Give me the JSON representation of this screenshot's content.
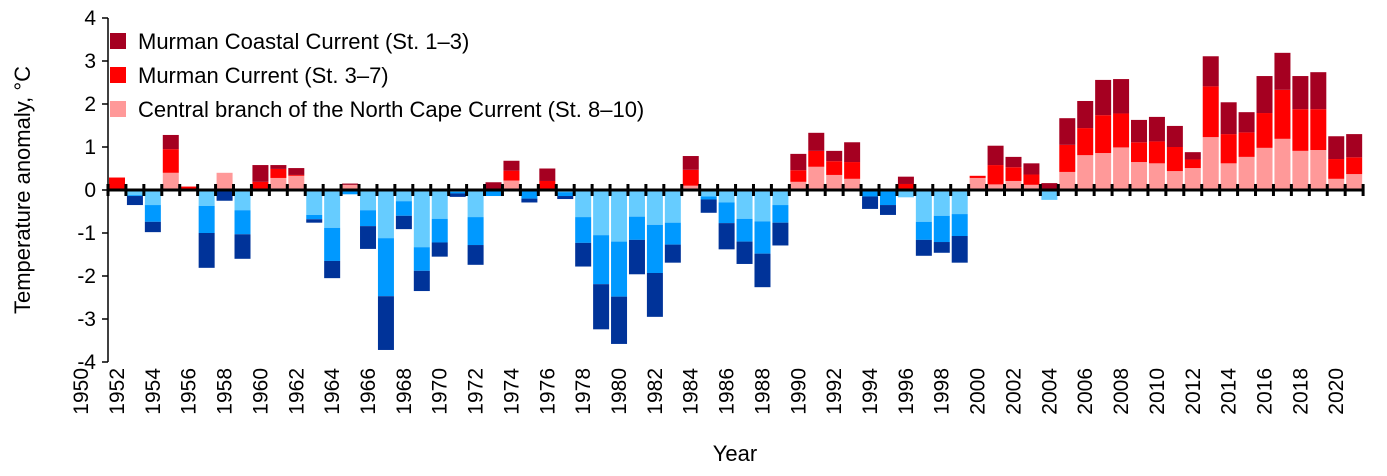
{
  "chart_data": {
    "type": "bar",
    "stacked": true,
    "title": "",
    "xlabel": "Year",
    "ylabel": "Temperature anomaly, °C",
    "ylim": [
      -4,
      4
    ],
    "yticks": [
      4,
      3,
      2,
      1,
      0,
      -1,
      -2,
      -3,
      -4
    ],
    "xtick_labels": [
      "1950",
      "1952",
      "1954",
      "1956",
      "1958",
      "1960",
      "1962",
      "1964",
      "1966",
      "1968",
      "1970",
      "1972",
      "1974",
      "1976",
      "1978",
      "1980",
      "1982",
      "1984",
      "1986",
      "1988",
      "1990",
      "1992",
      "1994",
      "1996",
      "1998",
      "2000",
      "2002",
      "2004",
      "2006",
      "2008",
      "2010",
      "2012",
      "2014",
      "2016",
      "2018",
      "2020"
    ],
    "grid": false,
    "legend_position": "top-left",
    "negative_colors_note_free": true,
    "categories": [
      1951,
      1952,
      1953,
      1954,
      1955,
      1956,
      1957,
      1958,
      1959,
      1960,
      1961,
      1962,
      1963,
      1964,
      1965,
      1966,
      1967,
      1968,
      1969,
      1970,
      1971,
      1972,
      1973,
      1974,
      1975,
      1976,
      1977,
      1978,
      1979,
      1980,
      1981,
      1982,
      1983,
      1984,
      1985,
      1986,
      1987,
      1988,
      1989,
      1990,
      1991,
      1992,
      1993,
      1994,
      1995,
      1996,
      1997,
      1998,
      1999,
      2000,
      2001,
      2002,
      2003,
      2004,
      2005,
      2006,
      2007,
      2008,
      2009,
      2010,
      2011,
      2012,
      2013,
      2014,
      2015,
      2016,
      2017,
      2018,
      2019,
      2020
    ],
    "series": [
      {
        "name": "Central branch of the North Cape Current (St. 8–10)",
        "color": "#FF9999",
        "negative_color": "#66CCFF",
        "values": [
          0.02,
          -0.12,
          -0.35,
          0.4,
          0.02,
          -0.37,
          0.4,
          -0.47,
          0,
          0.28,
          0.33,
          -0.58,
          -0.88,
          0.12,
          -0.47,
          -1.12,
          -0.26,
          -1.33,
          -0.67,
          -0.04,
          -0.63,
          0,
          0.22,
          -0.01,
          0,
          -0.05,
          -0.63,
          -1.05,
          -1.2,
          -0.62,
          -0.81,
          -0.76,
          0.1,
          -0.15,
          -0.29,
          -0.67,
          -0.73,
          -0.35,
          0.19,
          0.54,
          0.35,
          0.26,
          0,
          0,
          -0.17,
          -0.74,
          -0.6,
          -0.56,
          0.28,
          0.13,
          0.21,
          0.12,
          -0.23,
          0.42,
          0.81,
          0.86,
          0.99,
          0.65,
          0.62,
          0.44,
          0.51,
          1.23,
          0.62,
          0.77,
          0.98,
          1.19,
          0.91,
          0.93,
          0.26,
          0.37
        ]
      },
      {
        "name": "Murman Current (St. 3–7)",
        "color": "#FF0000",
        "negative_color": "#0099FF",
        "values": [
          0.27,
          -0.02,
          -0.39,
          0.55,
          0.06,
          -0.63,
          -0.03,
          -0.56,
          0.19,
          0.21,
          0.02,
          -0.1,
          -0.77,
          -0.1,
          -0.37,
          -1.35,
          -0.34,
          -0.55,
          -0.55,
          -0.04,
          -0.65,
          -0.14,
          0.23,
          -0.19,
          0.21,
          -0.09,
          -0.6,
          -1.14,
          -1.28,
          -0.54,
          -1.12,
          -0.51,
          0.37,
          -0.07,
          -0.48,
          -0.53,
          -0.75,
          -0.41,
          0.27,
          0.37,
          0.32,
          0.39,
          -0.15,
          -0.35,
          0.14,
          -0.42,
          -0.61,
          -0.51,
          0.05,
          0.45,
          0.32,
          0.24,
          0,
          0.63,
          0.63,
          0.88,
          0.79,
          0.46,
          0.51,
          0.56,
          0.2,
          1.18,
          0.68,
          0.57,
          0.81,
          1.14,
          0.97,
          0.95,
          0.46,
          0.39
        ]
      },
      {
        "name": "Murman Coastal Current (St. 1–3)",
        "color": "#A50021",
        "negative_color": "#003399",
        "values": [
          0,
          -0.21,
          -0.24,
          0.33,
          0,
          -0.81,
          -0.22,
          -0.57,
          0.39,
          0.09,
          0.16,
          -0.08,
          -0.4,
          0.03,
          -0.53,
          -1.25,
          -0.31,
          -0.47,
          -0.33,
          -0.08,
          -0.46,
          0.18,
          0.23,
          -0.09,
          0.29,
          -0.07,
          -0.55,
          -1.05,
          -1.1,
          -0.8,
          -1.02,
          -0.42,
          0.32,
          -0.31,
          -0.61,
          -0.52,
          -0.78,
          -0.53,
          0.38,
          0.42,
          0.24,
          0.46,
          -0.29,
          -0.23,
          0.17,
          -0.37,
          -0.25,
          -0.62,
          0,
          0.45,
          0.24,
          0.26,
          0.16,
          0.62,
          0.63,
          0.82,
          0.8,
          0.52,
          0.57,
          0.49,
          0.17,
          0.7,
          0.74,
          0.47,
          0.86,
          0.86,
          0.77,
          0.86,
          0.53,
          0.54
        ]
      }
    ],
    "legend": [
      {
        "label": "Murman Coastal Current (St. 1–3)",
        "color": "#A50021"
      },
      {
        "label": "Murman Current (St. 3–7)",
        "color": "#FF0000"
      },
      {
        "label": "Central branch of the North Cape Current (St. 8–10)",
        "color": "#FF9999"
      }
    ]
  }
}
